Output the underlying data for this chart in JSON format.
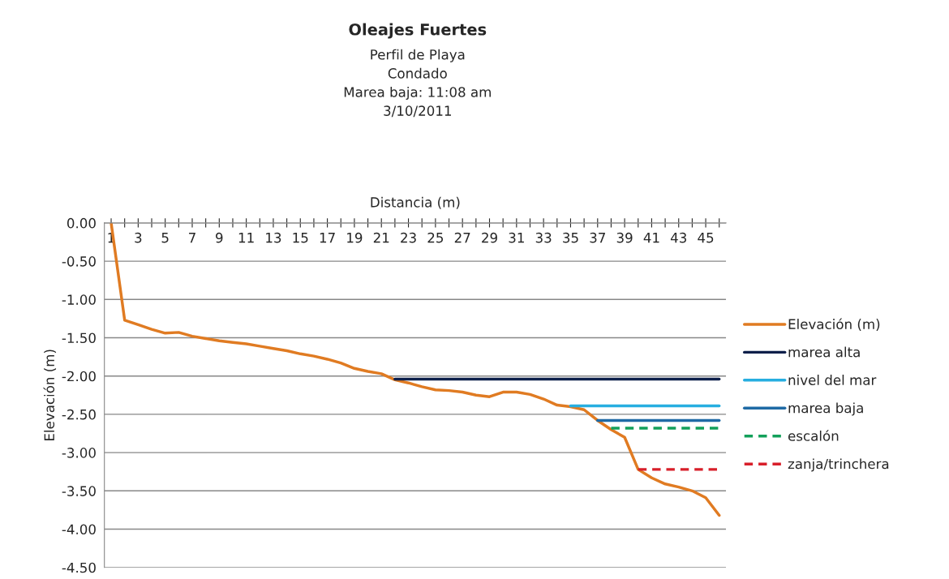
{
  "chart_data": {
    "type": "line",
    "title": "Oleajes Fuertes",
    "subtitle": "Perfil de Playa\nCondado\nMarea baja: 11:08 am\n3/10/2011",
    "xlabel": "Distancia (m)",
    "ylabel": "Elevación (m)",
    "categories": [
      "1",
      null,
      "3",
      null,
      "5",
      null,
      "7",
      null,
      "9",
      null,
      "11",
      null,
      "13",
      null,
      "15",
      null,
      "17",
      null,
      "19",
      null,
      "21",
      null,
      "23",
      null,
      "25",
      null,
      "27",
      null,
      "29",
      null,
      "31",
      null,
      "33",
      null,
      "35",
      null,
      "37",
      null,
      "39",
      null,
      "41",
      null,
      "43",
      null,
      "45",
      null
    ],
    "series": [
      {
        "name": "Elevación (m)",
        "color": "#e07b22",
        "line_style": "solid",
        "values": [
          0.0,
          -1.27,
          -1.33,
          -1.39,
          -1.44,
          -1.43,
          -1.48,
          -1.51,
          -1.54,
          -1.56,
          -1.58,
          -1.61,
          -1.64,
          -1.67,
          -1.71,
          -1.74,
          -1.78,
          -1.83,
          -1.9,
          -1.94,
          -1.97,
          -2.05,
          -2.09,
          -2.14,
          -2.18,
          -2.19,
          -2.21,
          -2.25,
          -2.27,
          -2.21,
          -2.21,
          -2.24,
          -2.3,
          -2.38,
          -2.4,
          -2.44,
          -2.58,
          -2.7,
          -2.8,
          -3.22,
          -3.33,
          -3.41,
          -3.45,
          -3.5,
          -3.59,
          -3.82
        ]
      },
      {
        "name": "marea alta",
        "color": "#0d1f4a",
        "line_style": "solid",
        "values": [
          null,
          null,
          null,
          null,
          null,
          null,
          null,
          null,
          null,
          null,
          null,
          null,
          null,
          null,
          null,
          null,
          null,
          null,
          null,
          null,
          null,
          -2.04,
          -2.04,
          -2.04,
          -2.04,
          -2.04,
          -2.04,
          -2.04,
          -2.04,
          -2.04,
          -2.04,
          -2.04,
          -2.04,
          -2.04,
          -2.04,
          -2.04,
          -2.04,
          -2.04,
          -2.04,
          -2.04,
          -2.04,
          -2.04,
          -2.04,
          -2.04,
          -2.04,
          -2.04
        ]
      },
      {
        "name": "nivel del mar",
        "color": "#27aee0",
        "line_style": "solid",
        "values": [
          null,
          null,
          null,
          null,
          null,
          null,
          null,
          null,
          null,
          null,
          null,
          null,
          null,
          null,
          null,
          null,
          null,
          null,
          null,
          null,
          null,
          null,
          null,
          null,
          null,
          null,
          null,
          null,
          null,
          null,
          null,
          null,
          null,
          null,
          -2.39,
          -2.39,
          -2.39,
          -2.39,
          -2.39,
          -2.39,
          -2.39,
          -2.39,
          -2.39,
          -2.39,
          -2.39,
          -2.39
        ]
      },
      {
        "name": "marea baja",
        "color": "#1f6aa5",
        "line_style": "solid",
        "values": [
          null,
          null,
          null,
          null,
          null,
          null,
          null,
          null,
          null,
          null,
          null,
          null,
          null,
          null,
          null,
          null,
          null,
          null,
          null,
          null,
          null,
          null,
          null,
          null,
          null,
          null,
          null,
          null,
          null,
          null,
          null,
          null,
          null,
          null,
          null,
          null,
          -2.58,
          -2.58,
          -2.58,
          -2.58,
          -2.58,
          -2.58,
          -2.58,
          -2.58,
          -2.58,
          -2.58
        ]
      },
      {
        "name": "escalón",
        "color": "#13a05a",
        "line_style": "dashed",
        "values": [
          null,
          null,
          null,
          null,
          null,
          null,
          null,
          null,
          null,
          null,
          null,
          null,
          null,
          null,
          null,
          null,
          null,
          null,
          null,
          null,
          null,
          null,
          null,
          null,
          null,
          null,
          null,
          null,
          null,
          null,
          null,
          null,
          null,
          null,
          null,
          null,
          null,
          -2.68,
          -2.68,
          -2.68,
          -2.68,
          -2.68,
          -2.68,
          -2.68,
          -2.68,
          -2.68
        ]
      },
      {
        "name": "zanja/trinchera",
        "color": "#d81f2a",
        "line_style": "dashed",
        "values": [
          null,
          null,
          null,
          null,
          null,
          null,
          null,
          null,
          null,
          null,
          null,
          null,
          null,
          null,
          null,
          null,
          null,
          null,
          null,
          null,
          null,
          null,
          null,
          null,
          null,
          null,
          null,
          null,
          null,
          null,
          null,
          null,
          null,
          null,
          null,
          null,
          null,
          null,
          null,
          -3.22,
          -3.22,
          -3.22,
          -3.22,
          -3.22,
          -3.22,
          -3.22
        ]
      }
    ],
    "ylim": [
      -4.5,
      0
    ],
    "yticks": [
      {
        "value": 0,
        "label": "0.00"
      },
      {
        "value": -0.5,
        "label": "-0.50"
      },
      {
        "value": -1,
        "label": "-1.00"
      },
      {
        "value": -1.5,
        "label": "-1.50"
      },
      {
        "value": -2,
        "label": "-2.00"
      },
      {
        "value": -2.5,
        "label": "-2.50"
      },
      {
        "value": -3,
        "label": "-3.00"
      },
      {
        "value": -3.5,
        "label": "-3.50"
      },
      {
        "value": -4,
        "label": "-4.00"
      },
      {
        "value": -4.5,
        "label": "-4.50"
      }
    ],
    "grid": "y",
    "legend": "right",
    "marker": "none"
  }
}
